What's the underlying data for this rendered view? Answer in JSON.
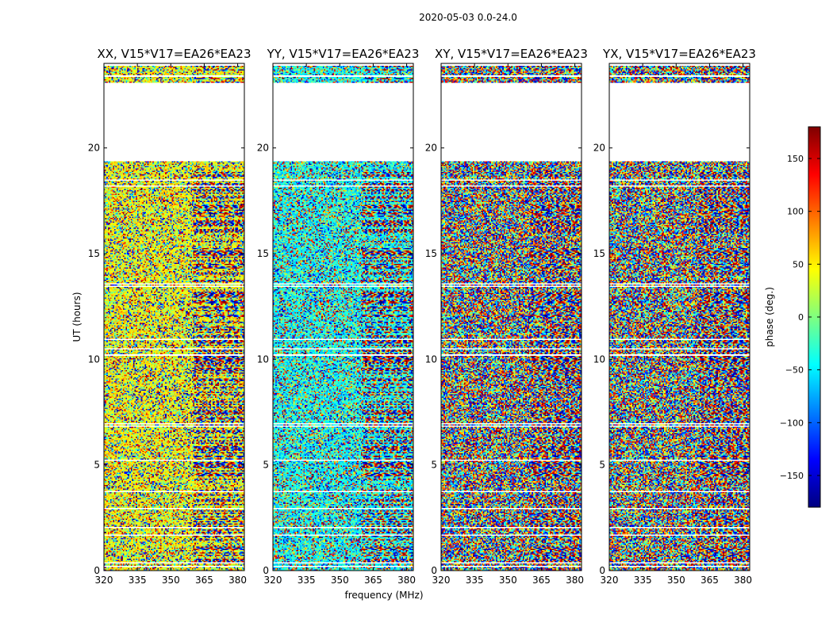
{
  "suptitle": "2020-05-03 0.0-24.0",
  "chart_data": {
    "type": "heatmap",
    "xlabel": "frequency (MHz)",
    "ylabel": "UT (hours)",
    "xlim": [
      320,
      383
    ],
    "ylim": [
      0,
      24
    ],
    "xticks": [
      320,
      335,
      350,
      365,
      380
    ],
    "yticks": [
      0,
      5,
      10,
      15,
      20
    ],
    "colorbar": {
      "label": "phase (deg.)",
      "range": [
        -180,
        180
      ],
      "ticks": [
        -150,
        -100,
        -50,
        0,
        50,
        100,
        150
      ],
      "tick_labels": [
        "−150",
        "−100",
        "−50",
        "0",
        "50",
        "100",
        "150"
      ],
      "colormap": "jet",
      "stops": [
        "#00007f",
        "#0000ff",
        "#007fff",
        "#00ffff",
        "#7fff7f",
        "#ffff00",
        "#ff7f00",
        "#ff0000",
        "#7f0000"
      ]
    },
    "panels": [
      {
        "title": "XX, V15*V17=EA26*EA23",
        "pol": "XX",
        "bias_deg": 40
      },
      {
        "title": "YY, V15*V17=EA26*EA23",
        "pol": "YY",
        "bias_deg": -40
      },
      {
        "title": "XY, V15*V17=EA26*EA23",
        "pol": "XY",
        "bias_deg": null
      },
      {
        "title": "YX, V15*V17=EA26*EA23",
        "pol": "YX",
        "bias_deg": null
      }
    ],
    "data_gaps_ut": [
      [
        19.4,
        23.1
      ]
    ],
    "structured_fringes_start_mhz": 360,
    "note": "Per-pixel phase values are noise-like random phases; rendered procedurally."
  }
}
